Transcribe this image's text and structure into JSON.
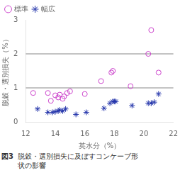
{
  "chart_data": {
    "type": "scatter",
    "xlabel": "英水分（%）",
    "ylabel": "脱穀・選別損失（%）",
    "annotations": [
      "図3",
      "脱穀・選別損失に及ぼすコンケーブ形",
      "状の影響"
    ],
    "xlim": [
      12,
      22
    ],
    "ylim": [
      0,
      3
    ],
    "xticks": [
      12,
      14,
      16,
      18,
      20,
      22
    ],
    "yticks": [
      0,
      1,
      2,
      3
    ],
    "hlines": [
      1.0,
      2.0
    ],
    "grid": false,
    "legend": "upper left",
    "series": [
      {
        "name": "標準",
        "color": "#cc44cc",
        "marker": "open_circle",
        "x": [
          12.5,
          13.5,
          13.7,
          14.0,
          14.2,
          14.3,
          14.5,
          14.6,
          14.8,
          15.0,
          16.0,
          17.1,
          17.8,
          17.9,
          19.1,
          20.3,
          20.5,
          21.0
        ],
        "values": [
          0.85,
          0.85,
          0.62,
          0.78,
          0.72,
          0.8,
          0.68,
          0.75,
          0.85,
          0.9,
          0.82,
          1.2,
          1.45,
          1.5,
          1.05,
          2.0,
          2.7,
          1.45
        ]
      },
      {
        "name": "幅広",
        "color": "#2233aa",
        "marker": "star",
        "x": [
          12.8,
          13.5,
          13.8,
          14.0,
          14.2,
          14.3,
          14.5,
          14.7,
          15.4,
          16.1,
          17.3,
          17.7,
          17.9,
          18.0,
          18.1,
          19.2,
          20.3,
          20.5,
          20.7,
          21.0
        ],
        "values": [
          0.38,
          0.28,
          0.28,
          0.3,
          0.32,
          0.35,
          0.32,
          0.38,
          0.22,
          0.28,
          0.4,
          0.55,
          0.6,
          0.6,
          0.6,
          0.48,
          0.55,
          0.55,
          0.58,
          0.82
        ]
      }
    ]
  }
}
